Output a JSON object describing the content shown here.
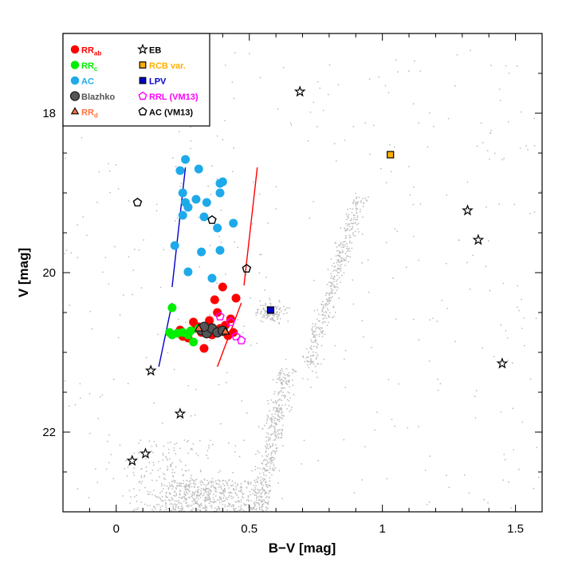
{
  "chart_data": {
    "type": "scatter",
    "title": "",
    "xlabel": "B−V [mag]",
    "ylabel": "V [mag]",
    "xlim": [
      -0.2,
      1.6
    ],
    "ylim": [
      23.0,
      17.0
    ],
    "y_inverted": true,
    "x_ticks": [
      "0",
      "0.5",
      "1",
      "1.5"
    ],
    "x_tick_values": [
      0,
      0.5,
      1.0,
      1.5
    ],
    "y_ticks": [
      "18",
      "20",
      "22"
    ],
    "y_tick_values": [
      18,
      20,
      22
    ],
    "grid": false,
    "legend_position": "top-left",
    "legend_entries": [
      {
        "key": "rrab",
        "base": "RR",
        "sub": "ab",
        "color": "#ff0000",
        "marker": "circle"
      },
      {
        "key": "eb",
        "base": "EB",
        "sub": "",
        "color": "#000000",
        "marker": "star"
      },
      {
        "key": "rrc",
        "base": "RR",
        "sub": "c",
        "color": "#00ee00",
        "marker": "circle"
      },
      {
        "key": "rcb",
        "base": "RCB var.",
        "sub": "",
        "color": "#ffb000",
        "marker": "square"
      },
      {
        "key": "ac",
        "base": "AC",
        "sub": "",
        "color": "#1eaaea",
        "marker": "circle"
      },
      {
        "key": "lpv",
        "base": "LPV",
        "sub": "",
        "color": "#0000cc",
        "marker": "square"
      },
      {
        "key": "blazhko",
        "base": "Blazhko",
        "sub": "",
        "color": "#555555",
        "marker": "circle-outlined"
      },
      {
        "key": "rrl_vm13",
        "base": "RRL (VM13)",
        "sub": "",
        "color": "#ff00ff",
        "marker": "pentagon"
      },
      {
        "key": "rrd",
        "base": "RR",
        "sub": "d",
        "color": "#ff7040",
        "marker": "triangle"
      },
      {
        "key": "ac_vm13",
        "base": "AC (VM13)",
        "sub": "",
        "color": "#000000",
        "marker": "pentagon"
      }
    ],
    "series": [
      {
        "key": "rrab",
        "points": [
          [
            0.25,
            20.8
          ],
          [
            0.24,
            20.72
          ],
          [
            0.32,
            20.75
          ],
          [
            0.35,
            20.6
          ],
          [
            0.38,
            20.5
          ],
          [
            0.4,
            20.18
          ],
          [
            0.37,
            20.34
          ],
          [
            0.45,
            20.32
          ],
          [
            0.43,
            20.58
          ],
          [
            0.3,
            20.7
          ],
          [
            0.33,
            20.95
          ],
          [
            0.27,
            20.82
          ],
          [
            0.36,
            20.78
          ],
          [
            0.41,
            20.66
          ],
          [
            0.44,
            20.75
          ],
          [
            0.29,
            20.62
          ],
          [
            0.31,
            20.68
          ],
          [
            0.39,
            20.7
          ],
          [
            0.42,
            20.79
          ]
        ]
      },
      {
        "key": "rrc",
        "points": [
          [
            0.21,
            20.44
          ],
          [
            0.2,
            20.75
          ],
          [
            0.21,
            20.78
          ],
          [
            0.23,
            20.76
          ],
          [
            0.25,
            20.75
          ],
          [
            0.27,
            20.78
          ],
          [
            0.28,
            20.73
          ],
          [
            0.29,
            20.87
          ],
          [
            0.31,
            20.7
          ]
        ]
      },
      {
        "key": "ac",
        "points": [
          [
            0.26,
            18.58
          ],
          [
            0.24,
            18.72
          ],
          [
            0.31,
            18.7
          ],
          [
            0.25,
            19.0
          ],
          [
            0.26,
            19.12
          ],
          [
            0.25,
            19.28
          ],
          [
            0.27,
            19.18
          ],
          [
            0.3,
            19.08
          ],
          [
            0.34,
            19.12
          ],
          [
            0.33,
            19.3
          ],
          [
            0.39,
            19.0
          ],
          [
            0.4,
            18.86
          ],
          [
            0.39,
            18.88
          ],
          [
            0.38,
            19.44
          ],
          [
            0.44,
            19.38
          ],
          [
            0.22,
            19.66
          ],
          [
            0.32,
            19.74
          ],
          [
            0.39,
            19.72
          ],
          [
            0.27,
            19.99
          ],
          [
            0.36,
            20.07
          ]
        ]
      },
      {
        "key": "blazhko",
        "points": [
          [
            0.32,
            20.72
          ],
          [
            0.34,
            20.76
          ],
          [
            0.36,
            20.7
          ],
          [
            0.38,
            20.75
          ],
          [
            0.4,
            20.73
          ],
          [
            0.33,
            20.68
          ]
        ]
      },
      {
        "key": "rrd",
        "points": [
          [
            0.31,
            20.7
          ],
          [
            0.41,
            20.74
          ]
        ]
      },
      {
        "key": "eb",
        "points": [
          [
            0.69,
            17.73
          ],
          [
            1.32,
            19.22
          ],
          [
            1.36,
            19.59
          ],
          [
            1.45,
            21.14
          ],
          [
            0.13,
            21.23
          ],
          [
            0.24,
            21.77
          ],
          [
            0.11,
            22.27
          ],
          [
            0.06,
            22.36
          ]
        ]
      },
      {
        "key": "rcb",
        "points": [
          [
            1.03,
            18.52
          ]
        ]
      },
      {
        "key": "lpv",
        "points": [
          [
            0.58,
            20.47
          ]
        ]
      },
      {
        "key": "rrl_vm13",
        "points": [
          [
            0.39,
            20.55
          ],
          [
            0.43,
            20.62
          ],
          [
            0.45,
            20.8
          ],
          [
            0.47,
            20.85
          ]
        ]
      },
      {
        "key": "ac_vm13",
        "points": [
          [
            0.08,
            19.12
          ],
          [
            0.36,
            19.34
          ],
          [
            0.49,
            19.95
          ]
        ]
      },
      {
        "key": "field",
        "points": []
      }
    ],
    "boundary_lines": [
      {
        "name": "blue edge",
        "color": "#0000cc",
        "segments": [
          [
            [
              0.16,
              21.18
            ],
            [
              0.21,
              20.38
            ]
          ],
          [
            [
              0.21,
              20.18
            ],
            [
              0.26,
              18.68
            ]
          ]
        ]
      },
      {
        "name": "red edge",
        "color": "#ff0000",
        "segments": [
          [
            [
              0.38,
              21.18
            ],
            [
              0.47,
              20.38
            ]
          ],
          [
            [
              0.48,
              20.16
            ],
            [
              0.53,
              18.68
            ]
          ]
        ]
      }
    ]
  }
}
